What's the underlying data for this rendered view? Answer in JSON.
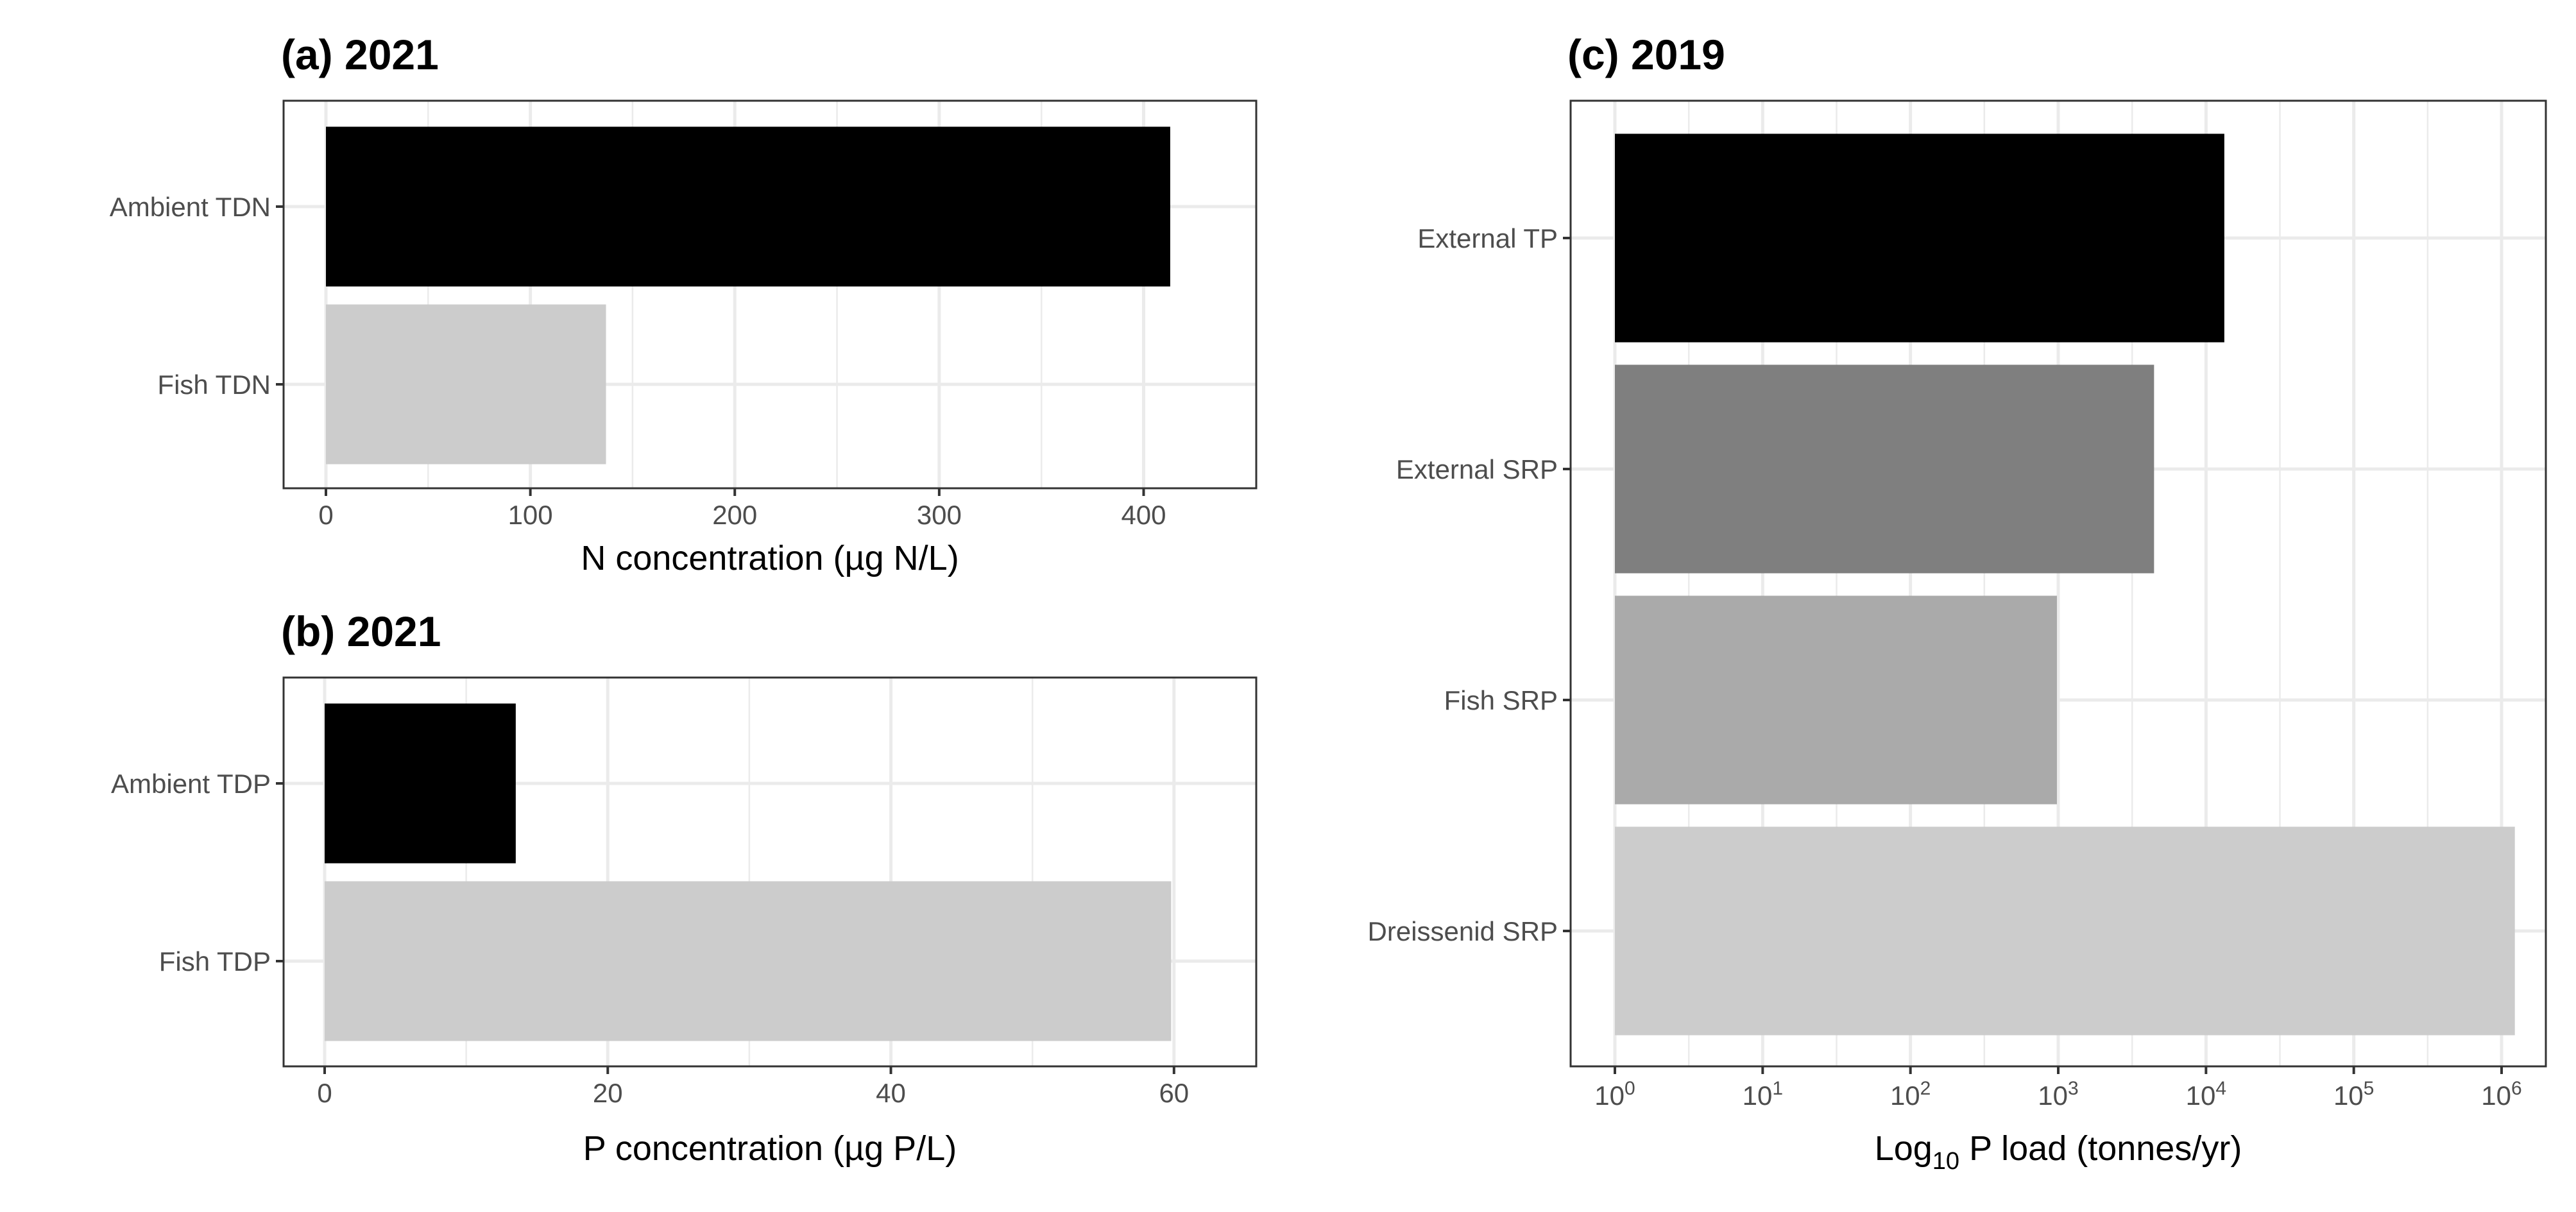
{
  "chart_data": [
    {
      "type": "bar",
      "orientation": "horizontal",
      "title": "(a) 2021",
      "xlabel": "N concentration (µg N/L)",
      "categories": [
        "Ambient TDN",
        "Fish TDN"
      ],
      "values": [
        413,
        137
      ],
      "colors": [
        "#000000",
        "#cccccc"
      ],
      "xlim": [
        0,
        435
      ],
      "xticks": [
        0,
        100,
        200,
        300,
        400
      ],
      "xtick_labels": [
        "0",
        "100",
        "200",
        "300",
        "400"
      ],
      "grid": true
    },
    {
      "type": "bar",
      "orientation": "horizontal",
      "title": "(b) 2021",
      "xlabel": "P concentration (µg P/L)",
      "categories": [
        "Ambient TDP",
        "Fish TDP"
      ],
      "values": [
        13.5,
        59.8
      ],
      "colors": [
        "#000000",
        "#cccccc"
      ],
      "xlim": [
        0,
        63
      ],
      "xticks": [
        0,
        20,
        40,
        60
      ],
      "xtick_labels": [
        "0",
        "20",
        "40",
        "60"
      ],
      "grid": true
    },
    {
      "type": "bar",
      "orientation": "horizontal",
      "title": "(c) 2019",
      "xlabel_main": "Log",
      "xlabel_sub": "10",
      "xlabel_rest": " P load (tonnes/yr)",
      "x_scale": "log10",
      "categories": [
        "External TP",
        "External SRP",
        "Fish SRP",
        "Dreissenid SRP"
      ],
      "values": [
        13300,
        4450,
        980,
        1230000
      ],
      "colors": [
        "#000000",
        "#7f7f7f",
        "#aaaaaa",
        "#cccccc"
      ],
      "xlim": [
        1,
        1000000
      ],
      "xticks": [
        1,
        10,
        100,
        1000,
        10000,
        100000,
        1000000
      ],
      "xtick_base": "10",
      "xtick_exponents": [
        "0",
        "1",
        "2",
        "3",
        "4",
        "5",
        "6"
      ],
      "grid": true
    }
  ]
}
